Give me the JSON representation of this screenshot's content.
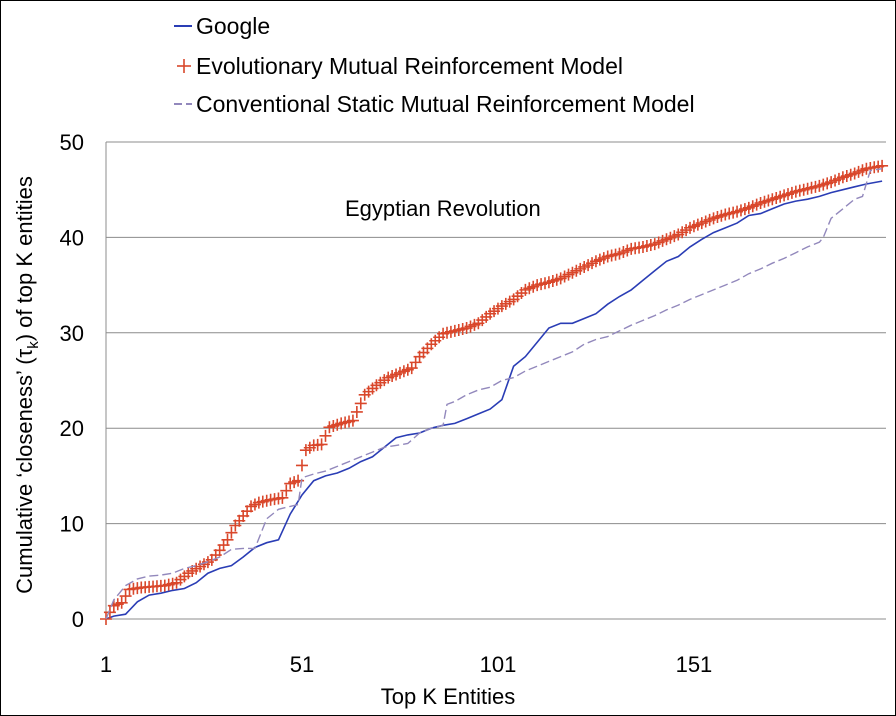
{
  "chart_data": {
    "type": "line",
    "title": "",
    "annotation": "Egyptian Revolution",
    "xlabel": "Top K Entities",
    "ylabel_parts": [
      "Cumulative ‘closeness’ (τ",
      "k",
      ") of top K entities"
    ],
    "xlim": [
      1,
      200
    ],
    "ylim": [
      0,
      50
    ],
    "xticks": [
      1,
      51,
      101,
      151
    ],
    "yticks": [
      0,
      10,
      20,
      30,
      40,
      50
    ],
    "grid": "horizontal",
    "legend_position": "top-left",
    "series": [
      {
        "name": "Google",
        "color": "#2a3db5",
        "style": "solid",
        "points": [
          [
            1,
            0
          ],
          [
            3,
            0.3
          ],
          [
            6,
            0.5
          ],
          [
            9,
            1.8
          ],
          [
            12,
            2.5
          ],
          [
            15,
            2.7
          ],
          [
            18,
            3
          ],
          [
            21,
            3.2
          ],
          [
            24,
            3.8
          ],
          [
            27,
            4.8
          ],
          [
            30,
            5.3
          ],
          [
            33,
            5.6
          ],
          [
            36,
            6.5
          ],
          [
            39,
            7.5
          ],
          [
            42,
            8
          ],
          [
            45,
            8.3
          ],
          [
            48,
            11
          ],
          [
            51,
            13
          ],
          [
            54,
            14.5
          ],
          [
            57,
            15
          ],
          [
            60,
            15.3
          ],
          [
            63,
            15.8
          ],
          [
            66,
            16.5
          ],
          [
            69,
            17
          ],
          [
            72,
            18
          ],
          [
            75,
            19
          ],
          [
            78,
            19.3
          ],
          [
            81,
            19.5
          ],
          [
            84,
            20
          ],
          [
            87,
            20.3
          ],
          [
            90,
            20.5
          ],
          [
            93,
            21
          ],
          [
            96,
            21.5
          ],
          [
            99,
            22
          ],
          [
            102,
            23
          ],
          [
            105,
            26.5
          ],
          [
            108,
            27.5
          ],
          [
            111,
            29
          ],
          [
            114,
            30.5
          ],
          [
            117,
            31
          ],
          [
            120,
            31
          ],
          [
            123,
            31.5
          ],
          [
            126,
            32
          ],
          [
            129,
            33
          ],
          [
            132,
            33.8
          ],
          [
            135,
            34.5
          ],
          [
            138,
            35.5
          ],
          [
            141,
            36.5
          ],
          [
            144,
            37.5
          ],
          [
            147,
            38
          ],
          [
            150,
            39
          ],
          [
            153,
            39.8
          ],
          [
            156,
            40.5
          ],
          [
            159,
            41
          ],
          [
            162,
            41.5
          ],
          [
            165,
            42.3
          ],
          [
            168,
            42.5
          ],
          [
            171,
            43
          ],
          [
            174,
            43.5
          ],
          [
            177,
            43.8
          ],
          [
            180,
            44
          ],
          [
            183,
            44.3
          ],
          [
            186,
            44.7
          ],
          [
            189,
            45
          ],
          [
            192,
            45.3
          ],
          [
            195,
            45.6
          ],
          [
            199,
            45.9
          ]
        ]
      },
      {
        "name": "Evolutionary Mutual Reinforcement Model",
        "color": "#d9472b",
        "style": "plus-markers",
        "points": [
          [
            1,
            0
          ],
          [
            3,
            1.4
          ],
          [
            5,
            1.7
          ],
          [
            7,
            3.1
          ],
          [
            10,
            3.3
          ],
          [
            13,
            3.4
          ],
          [
            16,
            3.5
          ],
          [
            19,
            3.8
          ],
          [
            22,
            4.8
          ],
          [
            25,
            5.5
          ],
          [
            28,
            6.2
          ],
          [
            30,
            7.2
          ],
          [
            32,
            8.3
          ],
          [
            34,
            9.8
          ],
          [
            36,
            10.8
          ],
          [
            38,
            11.8
          ],
          [
            40,
            12.2
          ],
          [
            43,
            12.5
          ],
          [
            46,
            12.7
          ],
          [
            48,
            14.2
          ],
          [
            50,
            14.5
          ],
          [
            52,
            17.7
          ],
          [
            54,
            18.2
          ],
          [
            56,
            18.3
          ],
          [
            58,
            20.1
          ],
          [
            61,
            20.5
          ],
          [
            64,
            20.8
          ],
          [
            67,
            23.5
          ],
          [
            70,
            24.5
          ],
          [
            73,
            25.3
          ],
          [
            76,
            25.8
          ],
          [
            79,
            26.3
          ],
          [
            81,
            27.5
          ],
          [
            84,
            28.8
          ],
          [
            87,
            29.9
          ],
          [
            90,
            30.2
          ],
          [
            93,
            30.5
          ],
          [
            96,
            31
          ],
          [
            99,
            32
          ],
          [
            102,
            32.8
          ],
          [
            105,
            33.5
          ],
          [
            108,
            34.5
          ],
          [
            111,
            35
          ],
          [
            114,
            35.3
          ],
          [
            117,
            35.7
          ],
          [
            120,
            36.3
          ],
          [
            123,
            36.9
          ],
          [
            126,
            37.5
          ],
          [
            129,
            38
          ],
          [
            132,
            38.3
          ],
          [
            135,
            38.8
          ],
          [
            138,
            39
          ],
          [
            141,
            39.3
          ],
          [
            144,
            39.8
          ],
          [
            147,
            40.3
          ],
          [
            150,
            41
          ],
          [
            153,
            41.5
          ],
          [
            156,
            42
          ],
          [
            159,
            42.4
          ],
          [
            162,
            42.7
          ],
          [
            165,
            43.1
          ],
          [
            168,
            43.6
          ],
          [
            171,
            44
          ],
          [
            174,
            44.4
          ],
          [
            177,
            44.8
          ],
          [
            180,
            45.1
          ],
          [
            183,
            45.4
          ],
          [
            186,
            45.8
          ],
          [
            189,
            46.3
          ],
          [
            192,
            46.7
          ],
          [
            195,
            47.2
          ],
          [
            199,
            47.5
          ]
        ]
      },
      {
        "name": "Conventional Static Mutual Reinforcement Model",
        "color": "#9288bc",
        "style": "dashed",
        "points": [
          [
            1,
            0
          ],
          [
            3,
            2
          ],
          [
            6,
            3.5
          ],
          [
            9,
            4.2
          ],
          [
            12,
            4.5
          ],
          [
            15,
            4.6
          ],
          [
            18,
            4.8
          ],
          [
            21,
            5.3
          ],
          [
            24,
            5.6
          ],
          [
            27,
            6
          ],
          [
            30,
            6.5
          ],
          [
            33,
            7.3
          ],
          [
            36,
            7.4
          ],
          [
            39,
            7.4
          ],
          [
            42,
            10.5
          ],
          [
            45,
            11.5
          ],
          [
            48,
            11.8
          ],
          [
            50,
            12
          ],
          [
            51,
            14.8
          ],
          [
            54,
            15.2
          ],
          [
            57,
            15.5
          ],
          [
            60,
            16
          ],
          [
            63,
            16.5
          ],
          [
            66,
            17
          ],
          [
            69,
            17.5
          ],
          [
            72,
            18
          ],
          [
            75,
            18.2
          ],
          [
            78,
            18.4
          ],
          [
            81,
            19.5
          ],
          [
            84,
            20
          ],
          [
            87,
            20.3
          ],
          [
            88,
            22.5
          ],
          [
            90,
            22.8
          ],
          [
            93,
            23.5
          ],
          [
            96,
            24
          ],
          [
            99,
            24.3
          ],
          [
            102,
            25
          ],
          [
            105,
            25.3
          ],
          [
            108,
            26
          ],
          [
            111,
            26.5
          ],
          [
            114,
            27
          ],
          [
            117,
            27.5
          ],
          [
            120,
            28
          ],
          [
            123,
            28.8
          ],
          [
            126,
            29.3
          ],
          [
            129,
            29.6
          ],
          [
            132,
            30.2
          ],
          [
            135,
            30.8
          ],
          [
            138,
            31.3
          ],
          [
            141,
            31.8
          ],
          [
            144,
            32.4
          ],
          [
            147,
            32.9
          ],
          [
            150,
            33.5
          ],
          [
            153,
            34
          ],
          [
            156,
            34.5
          ],
          [
            159,
            35
          ],
          [
            162,
            35.5
          ],
          [
            165,
            36.2
          ],
          [
            168,
            36.7
          ],
          [
            171,
            37.3
          ],
          [
            174,
            37.8
          ],
          [
            177,
            38.4
          ],
          [
            180,
            39
          ],
          [
            183,
            39.5
          ],
          [
            184,
            40
          ],
          [
            186,
            42
          ],
          [
            189,
            43
          ],
          [
            192,
            44
          ],
          [
            194,
            44.3
          ],
          [
            196,
            47
          ],
          [
            199,
            47.2
          ]
        ]
      }
    ]
  }
}
